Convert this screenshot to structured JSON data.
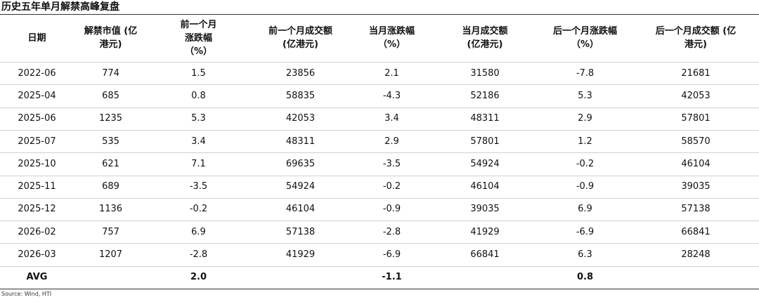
{
  "title": "历史五年单月解禁高峰复盘",
  "table": {
    "header": [
      [
        "日期"
      ],
      [
        "解禁市值 (亿",
        "港元)"
      ],
      [
        "前一个月",
        "涨跌幅",
        "（%）"
      ],
      [
        "前一个月成交额",
        "(亿港元)"
      ],
      [
        "当月涨跌幅",
        "（%）"
      ],
      [
        "当月成交额",
        "(亿港元)"
      ],
      [
        "后一个月涨跌幅",
        "（%）"
      ],
      [
        "后一个月成交额 (亿",
        "港元)"
      ]
    ],
    "rows": [
      [
        "2022-06",
        "774",
        "1.5",
        "23856",
        "2.1",
        "31580",
        "-7.8",
        "21681"
      ],
      [
        "2025-04",
        "685",
        "0.8",
        "58835",
        "-4.3",
        "52186",
        "5.3",
        "42053"
      ],
      [
        "2025-06",
        "1235",
        "5.3",
        "42053",
        "3.4",
        "48311",
        "2.9",
        "57801"
      ],
      [
        "2025-07",
        "535",
        "3.4",
        "48311",
        "2.9",
        "57801",
        "1.2",
        "58570"
      ],
      [
        "2025-10",
        "621",
        "7.1",
        "69635",
        "-3.5",
        "54924",
        "-0.2",
        "46104"
      ],
      [
        "2025-11",
        "689",
        "-3.5",
        "54924",
        "-0.2",
        "46104",
        "-0.9",
        "39035"
      ],
      [
        "2025-12",
        "1136",
        "-0.2",
        "46104",
        "-0.9",
        "39035",
        "6.9",
        "57138"
      ],
      [
        "2026-02",
        "757",
        "6.9",
        "57138",
        "-2.8",
        "41929",
        "-6.9",
        "66841"
      ],
      [
        "2026-03",
        "1207",
        "-2.8",
        "41929",
        "-6.9",
        "66841",
        "6.3",
        "28248"
      ]
    ],
    "avg": [
      "AVG",
      null,
      "2.0",
      null,
      "-1.1",
      null,
      "0.8",
      null
    ]
  },
  "source": "Source: Wind, HTI"
}
